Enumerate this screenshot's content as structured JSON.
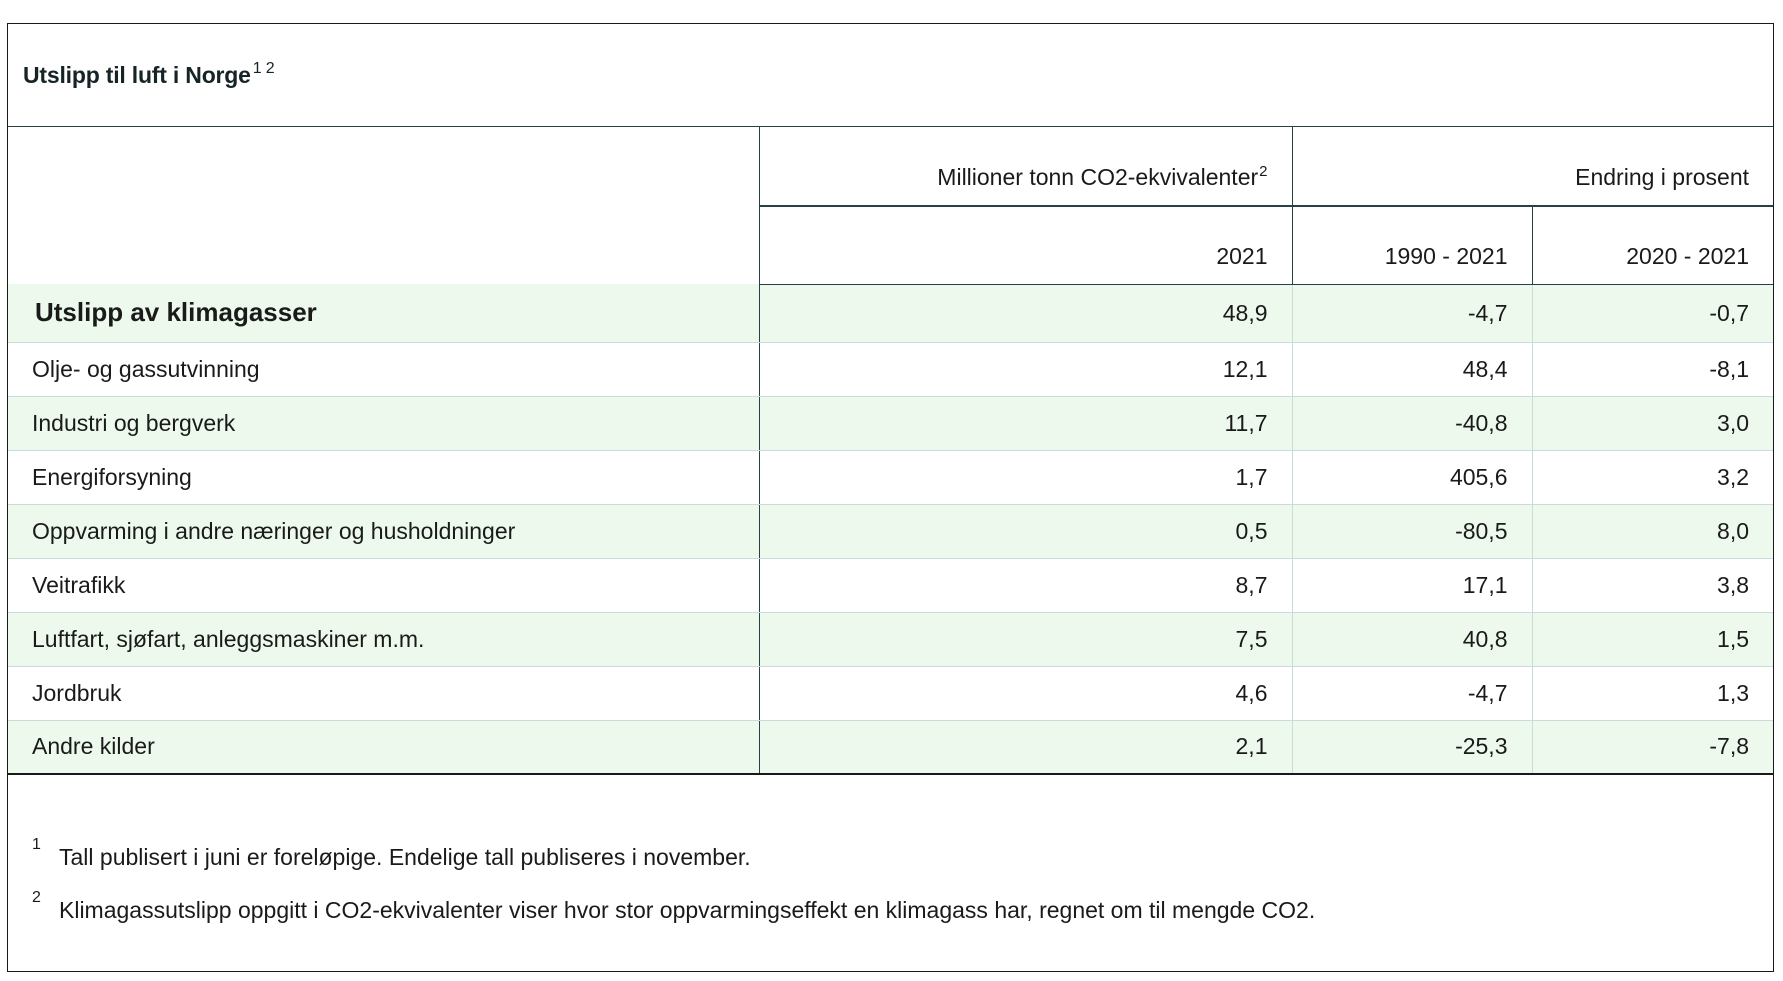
{
  "table": {
    "title": "Utslipp til luft i Norge",
    "title_notes": "1 2",
    "header": {
      "group1_label": "Millioner tonn CO2-ekvivalenter",
      "group1_note": "2",
      "group2_label": "Endring i prosent",
      "col1": "2021",
      "col2": "1990 - 2021",
      "col3": "2020 - 2021"
    },
    "rows": [
      {
        "label": "Utslipp av klimagasser",
        "v2021": "48,9",
        "c1990": "-4,7",
        "c2020": "-0,7"
      },
      {
        "label": "Olje- og gassutvinning",
        "v2021": "12,1",
        "c1990": "48,4",
        "c2020": "-8,1"
      },
      {
        "label": "Industri og bergverk",
        "v2021": "11,7",
        "c1990": "-40,8",
        "c2020": "3,0"
      },
      {
        "label": "Energiforsyning",
        "v2021": "1,7",
        "c1990": "405,6",
        "c2020": "3,2"
      },
      {
        "label": "Oppvarming i andre næringer og husholdninger",
        "v2021": "0,5",
        "c1990": "-80,5",
        "c2020": "8,0"
      },
      {
        "label": "Veitrafikk",
        "v2021": "8,7",
        "c1990": "17,1",
        "c2020": "3,8"
      },
      {
        "label": "Luftfart, sjøfart, anleggsmaskiner m.m.",
        "v2021": "7,5",
        "c1990": "40,8",
        "c2020": "1,5"
      },
      {
        "label": "Jordbruk",
        "v2021": "4,6",
        "c1990": "-4,7",
        "c2020": "1,3"
      },
      {
        "label": "Andre kilder",
        "v2021": "2,1",
        "c1990": "-25,3",
        "c2020": "-7,8"
      }
    ],
    "footnotes": [
      {
        "num": "1",
        "text": "Tall publisert i juni er foreløpige. Endelige tall publiseres i november."
      },
      {
        "num": "2",
        "text": "Klimagassutslipp oppgitt i CO2-ekvivalenter viser hvor stor oppvarmingseffekt en klimagass har, regnet om til mengde CO2."
      }
    ]
  },
  "colors": {
    "row_highlight": "#ecf9ec",
    "border_dark": "#274247",
    "border_light": "#c8dcdc"
  }
}
